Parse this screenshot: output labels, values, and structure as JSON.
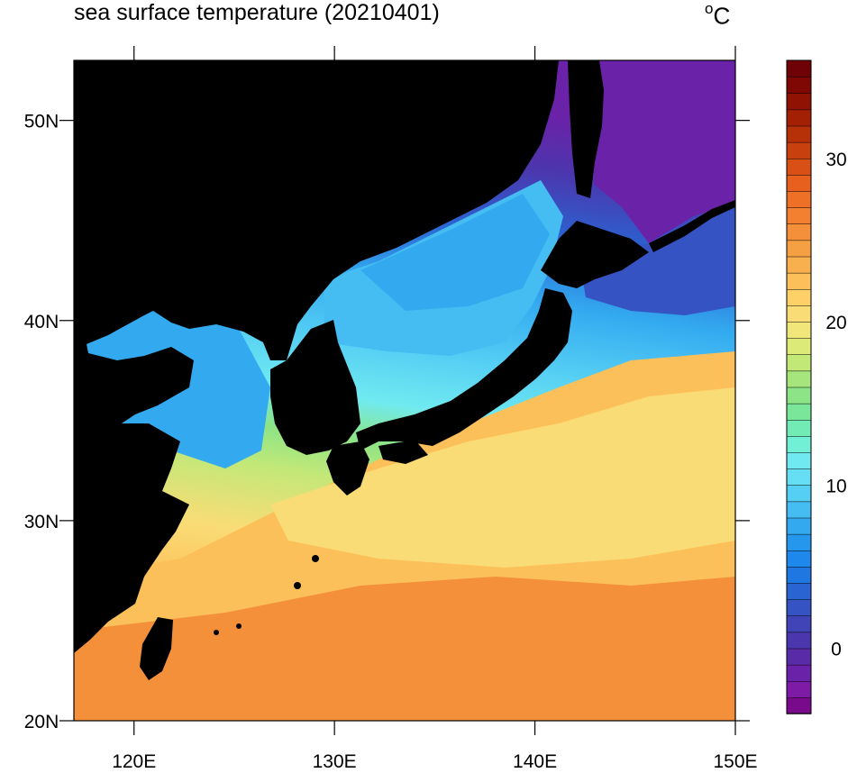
{
  "title": "sea surface temperature (20210401)",
  "unit": {
    "degree": "o",
    "letter": "C"
  },
  "map": {
    "lon_range": [
      117,
      150
    ],
    "lat_range": [
      20,
      53
    ],
    "lon_ticks": [
      {
        "value": 120,
        "label": "120E"
      },
      {
        "value": 130,
        "label": "130E"
      },
      {
        "value": 140,
        "label": "140E"
      },
      {
        "value": 150,
        "label": "150E"
      }
    ],
    "lat_ticks": [
      {
        "value": 20,
        "label": "20N"
      },
      {
        "value": 30,
        "label": "30N"
      },
      {
        "value": 40,
        "label": "40N"
      },
      {
        "value": 50,
        "label": "50N"
      }
    ],
    "land_color": "#000000"
  },
  "colorbar": {
    "range": [
      -4,
      36
    ],
    "labels": [
      {
        "value": 0,
        "label": "0"
      },
      {
        "value": 10,
        "label": "10"
      },
      {
        "value": 20,
        "label": "20"
      },
      {
        "value": 30,
        "label": "30"
      }
    ],
    "colors": [
      "#7a0a8c",
      "#7d1aa6",
      "#6a22a8",
      "#5a2ba6",
      "#4c36ad",
      "#4044b6",
      "#3553c2",
      "#2a64d2",
      "#1f77e2",
      "#1f88ec",
      "#2598ee",
      "#33aaf0",
      "#45bcf2",
      "#56cff4",
      "#66def4",
      "#70eaf0",
      "#72f0d6",
      "#72ecb4",
      "#7ae69a",
      "#8ce486",
      "#a6e47c",
      "#c2e878",
      "#dcea78",
      "#f0e67a",
      "#fadc76",
      "#fed068",
      "#fcc05a",
      "#f8b04e",
      "#f6a044",
      "#f4903a",
      "#f28030",
      "#ee7026",
      "#e8601e",
      "#d85016",
      "#c8400e",
      "#b63008",
      "#a42004",
      "#901202",
      "#800804",
      "#6e0206"
    ]
  }
}
